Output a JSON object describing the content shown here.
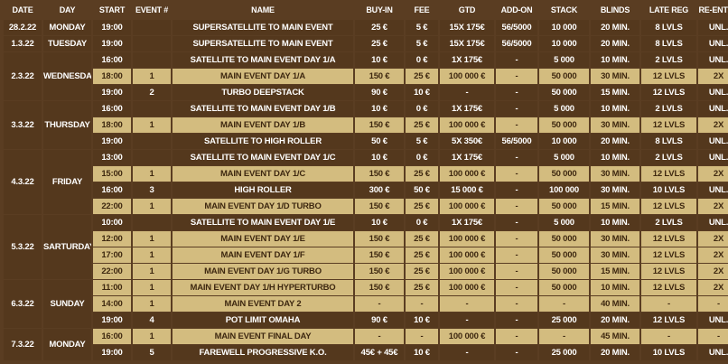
{
  "columns": [
    "DATE",
    "DAY",
    "START",
    "EVENT #",
    "NAME",
    "BUY-IN",
    "FEE",
    "GTD",
    "ADD-ON",
    "STACK",
    "BLINDS",
    "LATE REG",
    "RE-ENTRY"
  ],
  "groups": [
    {
      "date": "28.2.22",
      "day": "MONDAY",
      "rows": [
        {
          "start": "19:00",
          "event": "",
          "name": "SUPERSATELLITE TO MAIN EVENT",
          "buyin": "25 €",
          "fee": "5 €",
          "gtd": "15X 175€",
          "addon": "56/5000",
          "stack": "10 000",
          "blinds": "20 MIN.",
          "latereg": "8 LVLS",
          "reentry": "UNL.",
          "hl": false
        }
      ]
    },
    {
      "date": "1.3.22",
      "day": "TUESDAY",
      "rows": [
        {
          "start": "19:00",
          "event": "",
          "name": "SUPERSATELLITE TO MAIN EVENT",
          "buyin": "25 €",
          "fee": "5 €",
          "gtd": "15X 175€",
          "addon": "56/5000",
          "stack": "10 000",
          "blinds": "20 MIN.",
          "latereg": "8 LVLS",
          "reentry": "UNL.",
          "hl": false
        }
      ]
    },
    {
      "date": "2.3.22",
      "day": "WEDNESDAY",
      "rows": [
        {
          "start": "16:00",
          "event": "",
          "name": "SATELLITE TO MAIN EVENT DAY 1/A",
          "buyin": "10 €",
          "fee": "0 €",
          "gtd": "1X 175€",
          "addon": "-",
          "stack": "5 000",
          "blinds": "10 MIN.",
          "latereg": "2 LVLS",
          "reentry": "UNL.",
          "hl": false
        },
        {
          "start": "18:00",
          "event": "1",
          "name": "MAIN EVENT DAY 1/A",
          "buyin": "150 €",
          "fee": "25 €",
          "gtd": "100 000 €",
          "addon": "-",
          "stack": "50 000",
          "blinds": "30 MIN.",
          "latereg": "12 LVLS",
          "reentry": "2X",
          "hl": true
        },
        {
          "start": "19:00",
          "event": "2",
          "name": "TURBO DEEPSTACK",
          "buyin": "90 €",
          "fee": "10 €",
          "gtd": "-",
          "addon": "-",
          "stack": "50 000",
          "blinds": "15 MIN.",
          "latereg": "12 LVLS",
          "reentry": "UNL.",
          "hl": false
        }
      ]
    },
    {
      "date": "3.3.22",
      "day": "THURSDAY",
      "rows": [
        {
          "start": "16:00",
          "event": "",
          "name": "SATELLITE TO MAIN EVENT DAY 1/B",
          "buyin": "10 €",
          "fee": "0 €",
          "gtd": "1X 175€",
          "addon": "-",
          "stack": "5 000",
          "blinds": "10 MIN.",
          "latereg": "2 LVLS",
          "reentry": "UNL.",
          "hl": false
        },
        {
          "start": "18:00",
          "event": "1",
          "name": "MAIN EVENT DAY 1/B",
          "buyin": "150 €",
          "fee": "25 €",
          "gtd": "100 000 €",
          "addon": "-",
          "stack": "50 000",
          "blinds": "30 MIN.",
          "latereg": "12 LVLS",
          "reentry": "2X",
          "hl": true
        },
        {
          "start": "19:00",
          "event": "",
          "name": "SATELLITE TO HIGH ROLLER",
          "buyin": "50 €",
          "fee": "5 €",
          "gtd": "5X 350€",
          "addon": "56/5000",
          "stack": "10 000",
          "blinds": "20 MIN.",
          "latereg": "8 LVLS",
          "reentry": "UNL.",
          "hl": false
        }
      ]
    },
    {
      "date": "4.3.22",
      "day": "FRIDAY",
      "rows": [
        {
          "start": "13:00",
          "event": "",
          "name": "SATELLITE TO MAIN EVENT DAY 1/C",
          "buyin": "10 €",
          "fee": "0 €",
          "gtd": "1X 175€",
          "addon": "-",
          "stack": "5 000",
          "blinds": "10 MIN.",
          "latereg": "2 LVLS",
          "reentry": "UNL.",
          "hl": false
        },
        {
          "start": "15:00",
          "event": "1",
          "name": "MAIN EVENT DAY 1/C",
          "buyin": "150 €",
          "fee": "25 €",
          "gtd": "100 000 €",
          "addon": "-",
          "stack": "50 000",
          "blinds": "30 MIN.",
          "latereg": "12 LVLS",
          "reentry": "2X",
          "hl": true
        },
        {
          "start": "16:00",
          "event": "3",
          "name": "HIGH ROLLER",
          "buyin": "300 €",
          "fee": "50 €",
          "gtd": "15 000 €",
          "addon": "-",
          "stack": "100 000",
          "blinds": "30 MIN.",
          "latereg": "10 LVLS",
          "reentry": "UNL.",
          "hl": false
        },
        {
          "start": "22:00",
          "event": "1",
          "name": "MAIN EVENT DAY 1/D TURBO",
          "buyin": "150 €",
          "fee": "25 €",
          "gtd": "100 000 €",
          "addon": "-",
          "stack": "50 000",
          "blinds": "15 MIN.",
          "latereg": "12 LVLS",
          "reentry": "2X",
          "hl": true
        }
      ]
    },
    {
      "date": "5.3.22",
      "day": "SARTURDAY",
      "rows": [
        {
          "start": "10:00",
          "event": "",
          "name": "SATELLITE TO MAIN EVENT DAY 1/E",
          "buyin": "10 €",
          "fee": "0 €",
          "gtd": "1X 175€",
          "addon": "-",
          "stack": "5 000",
          "blinds": "10 MIN.",
          "latereg": "2 LVLS",
          "reentry": "UNL.",
          "hl": false
        },
        {
          "start": "12:00",
          "event": "1",
          "name": "MAIN EVENT DAY 1/E",
          "buyin": "150 €",
          "fee": "25 €",
          "gtd": "100 000 €",
          "addon": "-",
          "stack": "50 000",
          "blinds": "30 MIN.",
          "latereg": "12 LVLS",
          "reentry": "2X",
          "hl": true
        },
        {
          "start": "17:00",
          "event": "1",
          "name": "MAIN EVENT DAY 1/F",
          "buyin": "150 €",
          "fee": "25 €",
          "gtd": "100 000 €",
          "addon": "-",
          "stack": "50 000",
          "blinds": "30 MIN.",
          "latereg": "12 LVLS",
          "reentry": "2X",
          "hl": true
        },
        {
          "start": "22:00",
          "event": "1",
          "name": "MAIN EVENT DAY 1/G TURBO",
          "buyin": "150 €",
          "fee": "25 €",
          "gtd": "100 000 €",
          "addon": "-",
          "stack": "50 000",
          "blinds": "15 MIN.",
          "latereg": "12 LVLS",
          "reentry": "2X",
          "hl": true
        }
      ]
    },
    {
      "date": "6.3.22",
      "day": "SUNDAY",
      "rows": [
        {
          "start": "11:00",
          "event": "1",
          "name": "MAIN EVENT DAY 1/H HYPERTURBO",
          "buyin": "150 €",
          "fee": "25 €",
          "gtd": "100 000 €",
          "addon": "-",
          "stack": "50 000",
          "blinds": "10 MIN.",
          "latereg": "12 LVLS",
          "reentry": "2X",
          "hl": true
        },
        {
          "start": "14:00",
          "event": "1",
          "name": "MAIN EVENT DAY 2",
          "buyin": "-",
          "fee": "-",
          "gtd": "-",
          "addon": "-",
          "stack": "-",
          "blinds": "40 MIN.",
          "latereg": "-",
          "reentry": "-",
          "hl": true
        },
        {
          "start": "19:00",
          "event": "4",
          "name": "POT LIMIT OMAHA",
          "buyin": "90 €",
          "fee": "10 €",
          "gtd": "-",
          "addon": "-",
          "stack": "25 000",
          "blinds": "20 MIN.",
          "latereg": "12 LVLS",
          "reentry": "UNL.",
          "hl": false
        }
      ]
    },
    {
      "date": "7.3.22",
      "day": "MONDAY",
      "rows": [
        {
          "start": "16:00",
          "event": "1",
          "name": "MAIN EVENT FINAL DAY",
          "buyin": "-",
          "fee": "-",
          "gtd": "100 000 €",
          "addon": "-",
          "stack": "-",
          "blinds": "45 MIN.",
          "latereg": "-",
          "reentry": "-",
          "hl": true
        },
        {
          "start": "19:00",
          "event": "5",
          "name": "FAREWELL PROGRESSIVE K.O.",
          "buyin": "45€ + 45€",
          "fee": "10 €",
          "gtd": "-",
          "addon": "-",
          "stack": "25 000",
          "blinds": "20 MIN.",
          "latereg": "10 LVLS",
          "reentry": "UNL.",
          "hl": false
        }
      ]
    }
  ]
}
